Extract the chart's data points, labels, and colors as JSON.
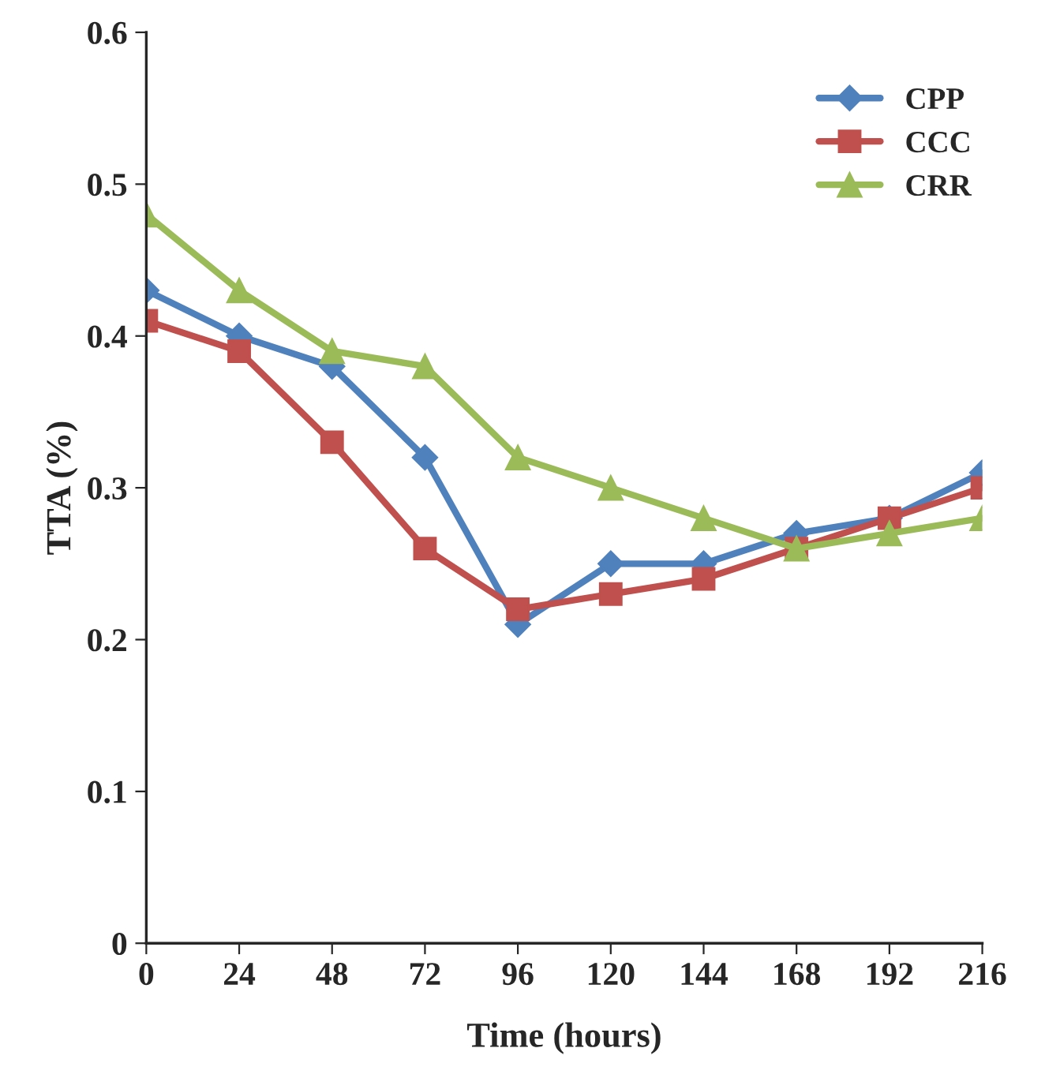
{
  "chart_data": {
    "type": "line",
    "xlabel": "Time (hours)",
    "ylabel": "TTA (%)",
    "x": [
      0,
      24,
      48,
      72,
      96,
      120,
      144,
      168,
      192,
      216
    ],
    "xlim": [
      0,
      216
    ],
    "xticks": [
      0,
      24,
      48,
      72,
      96,
      120,
      144,
      168,
      192,
      216
    ],
    "ylim": [
      0,
      0.6
    ],
    "yticks": [
      0,
      0.1,
      0.2,
      0.3,
      0.4,
      0.5,
      0.6
    ],
    "grid": false,
    "legend": "top right",
    "line_style": "solid",
    "series": [
      {
        "name": "CPP",
        "color": "#4f81bd",
        "marker": "diamond",
        "values": [
          0.43,
          0.4,
          0.38,
          0.32,
          0.21,
          0.25,
          0.25,
          0.27,
          0.28,
          0.31
        ]
      },
      {
        "name": "CCC",
        "color": "#c0504d",
        "marker": "square",
        "values": [
          0.41,
          0.39,
          0.33,
          0.26,
          0.22,
          0.23,
          0.24,
          0.26,
          0.28,
          0.3
        ]
      },
      {
        "name": "CRR",
        "color": "#9bbb59",
        "marker": "triangle",
        "values": [
          0.48,
          0.43,
          0.39,
          0.38,
          0.32,
          0.3,
          0.28,
          0.26,
          0.27,
          0.28
        ]
      }
    ]
  }
}
